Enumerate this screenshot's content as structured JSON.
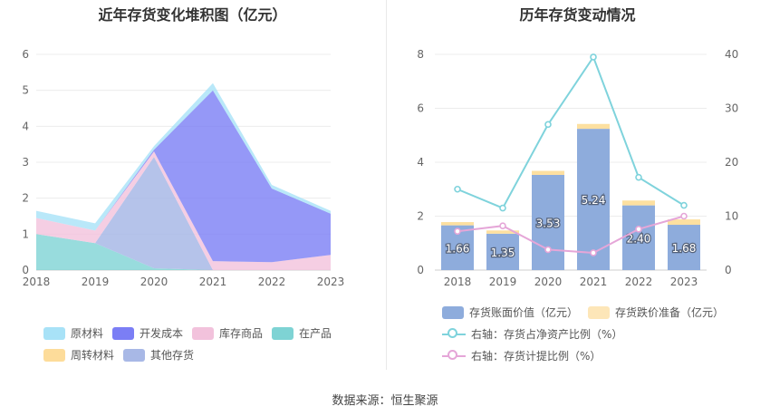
{
  "source": "数据来源：恒生聚源",
  "colors": {
    "raw_material": "#a8e2f7",
    "dev_cost": "#7b7ef5",
    "goods": "#f2c2dc",
    "wip": "#7ed3d4",
    "turnover": "#fddc9a",
    "other": "#a8b8e6",
    "bar_book": "#8eacdc",
    "bar_reserve": "#fde0a0",
    "line_ratio": "#7fd3dc",
    "line_provision": "#e5a6d8"
  },
  "chart_data": [
    {
      "type": "area",
      "stacked": true,
      "title": "近年存货变化堆积图（亿元）",
      "x": [
        "2018",
        "2019",
        "2020",
        "2021",
        "2022",
        "2023"
      ],
      "ylim": [
        0,
        6
      ],
      "yticks": [
        0,
        1,
        2,
        3,
        4,
        5,
        6
      ],
      "grid": true,
      "legend_position": "bottom",
      "series": [
        {
          "name": "在产品",
          "color_key": "wip",
          "values": [
            1.0,
            0.75,
            0.05,
            0.0,
            0.0,
            0.0
          ]
        },
        {
          "name": "其他存货",
          "color_key": "other",
          "values": [
            0.0,
            0.0,
            3.1,
            0.0,
            0.0,
            0.0
          ]
        },
        {
          "name": "库存商品",
          "color_key": "goods",
          "values": [
            0.45,
            0.35,
            0.15,
            0.25,
            0.22,
            0.42
          ]
        },
        {
          "name": "开发成本",
          "color_key": "dev_cost",
          "values": [
            0.0,
            0.0,
            0.05,
            4.75,
            2.05,
            1.15
          ]
        },
        {
          "name": "周转材料",
          "color_key": "turnover",
          "values": [
            0.0,
            0.0,
            0.0,
            0.0,
            0.0,
            0.0
          ]
        },
        {
          "name": "原材料",
          "color_key": "raw_material",
          "values": [
            0.2,
            0.2,
            0.1,
            0.2,
            0.1,
            0.08
          ]
        }
      ],
      "legend": [
        {
          "name": "原材料",
          "color_key": "raw_material"
        },
        {
          "name": "开发成本",
          "color_key": "dev_cost"
        },
        {
          "name": "库存商品",
          "color_key": "goods"
        },
        {
          "name": "在产品",
          "color_key": "wip"
        },
        {
          "name": "周转材料",
          "color_key": "turnover"
        },
        {
          "name": "其他存货",
          "color_key": "other"
        }
      ]
    },
    {
      "type": "bar",
      "stacked": true,
      "title": "历年存货变动情况",
      "categories": [
        "2018",
        "2019",
        "2020",
        "2021",
        "2022",
        "2023"
      ],
      "ylim": [
        0,
        8
      ],
      "yticks": [
        0,
        2,
        4,
        6,
        8
      ],
      "y2lim": [
        0,
        40
      ],
      "y2ticks": [
        0,
        10,
        20,
        30,
        40
      ],
      "grid": true,
      "legend_position": "bottom",
      "series": [
        {
          "name": "存货账面价值（亿元）",
          "kind": "bar",
          "color_key": "bar_book",
          "values": [
            1.66,
            1.35,
            3.53,
            5.24,
            2.4,
            1.68
          ],
          "labels": [
            "1.66",
            "1.35",
            "3.53",
            "5.24",
            "2.40",
            "1.68"
          ]
        },
        {
          "name": "存货跌价准备（亿元）",
          "kind": "bar",
          "color_key": "bar_reserve",
          "values": [
            0.12,
            0.12,
            0.15,
            0.18,
            0.18,
            0.2
          ]
        },
        {
          "name": "右轴：存货占净资产比例（%）",
          "kind": "line",
          "axis": "right",
          "color_key": "line_ratio",
          "values": [
            15.0,
            11.5,
            27.0,
            39.5,
            17.2,
            12.0
          ]
        },
        {
          "name": "右轴：存货计提比例（%）",
          "kind": "line",
          "axis": "right",
          "color_key": "line_provision",
          "values": [
            7.2,
            8.2,
            3.8,
            3.2,
            7.6,
            10.0
          ]
        }
      ]
    }
  ]
}
